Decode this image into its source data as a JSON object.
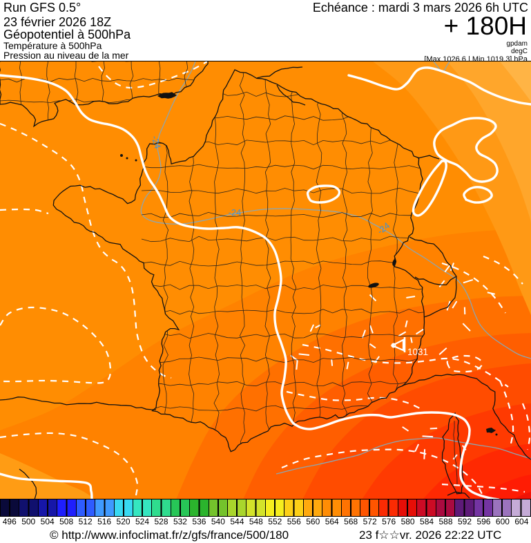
{
  "header": {
    "run": "Run GFS 0.5°",
    "run_date": "23 février 2026 18Z",
    "param_main": "Géopotentiel à 500hPa",
    "param_secondary": "Température à 500hPa",
    "param_tertiary": "Pression au niveau de la mer",
    "validity": "Echéance : mardi 3 mars 2026 6h UTC",
    "lead_time": "+ 180H",
    "unit_primary": "gpdam",
    "unit_secondary": "degC",
    "extremes": "[Max 1026.6 | Min 1019.3] hPa"
  },
  "map": {
    "temp_contour_label": "-24",
    "high_pressure_value": "1031",
    "base_color": "#ff8d02",
    "isobar_color": "#ffffff",
    "temp_contour_color": "#8ba6b2",
    "temp_label_color": "#4a90c8",
    "boundary_color": "#1c1c1c"
  },
  "colorbar": {
    "unit_values": [
      496,
      500,
      504,
      508,
      512,
      516,
      520,
      524,
      528,
      532,
      536,
      540,
      544,
      548,
      552,
      556,
      560,
      564,
      568,
      572,
      576,
      580,
      584,
      588,
      592,
      596,
      600,
      604
    ],
    "colors": [
      "#0a0a3a",
      "#10106e",
      "#1616a8",
      "#1f1ffd",
      "#2e5cff",
      "#3f9aff",
      "#38d9f2",
      "#35e6c0",
      "#2fdc8e",
      "#27c657",
      "#2bb42d",
      "#74c32c",
      "#a9d62c",
      "#d3e32a",
      "#f6ee1e",
      "#fdd017",
      "#ffa90e",
      "#ff8d05",
      "#ff7302",
      "#ff5500",
      "#fb2b03",
      "#e60e07",
      "#cc0b25",
      "#aa0b40",
      "#5e1a78",
      "#7434a2",
      "#9b73bd",
      "#c5abd7"
    ]
  },
  "footer": {
    "copyright": "© http://www.infoclimat.fr/z/gfs/france/500/180",
    "datetime": "23 f☆☆vr. 2026 22:22 UTC"
  }
}
